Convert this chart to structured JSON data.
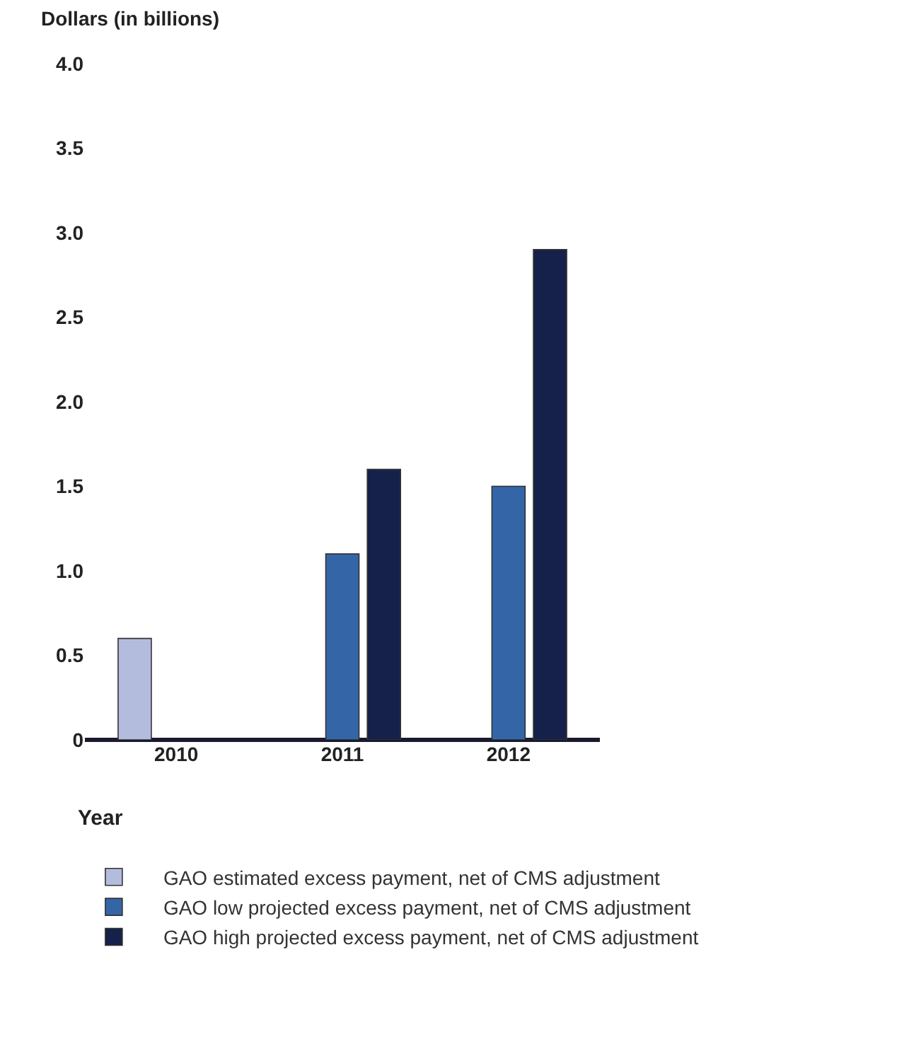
{
  "chart_data": {
    "type": "bar",
    "ylabel": "Dollars (in billions)",
    "xlabel": "Year",
    "categories": [
      "2010",
      "2011",
      "2012"
    ],
    "series": [
      {
        "name": "GAO estimated excess payment, net of CMS adjustment",
        "color": "#b4bcde",
        "values": [
          0.6,
          null,
          null
        ]
      },
      {
        "name": "GAO low projected excess payment, net of CMS adjustment",
        "color": "#3466a7",
        "values": [
          null,
          1.1,
          1.5
        ]
      },
      {
        "name": "GAO high projected excess payment, net of CMS adjustment",
        "color": "#15214a",
        "values": [
          null,
          1.6,
          2.9
        ]
      }
    ],
    "ylim": [
      0,
      4.0
    ],
    "yticks": [
      0,
      {
        "value": 0.5,
        "label": "0.5"
      },
      {
        "value": 1,
        "label": "1.0"
      },
      {
        "value": 1.5,
        "label": "1.5"
      },
      {
        "value": 2,
        "label": "2.0"
      },
      {
        "value": 2.5,
        "label": "2.5"
      },
      {
        "value": 3,
        "label": "3.0"
      },
      {
        "value": 3.5,
        "label": "3.5"
      },
      {
        "value": 4,
        "label": "4.0"
      }
    ],
    "legend": "bottom"
  }
}
